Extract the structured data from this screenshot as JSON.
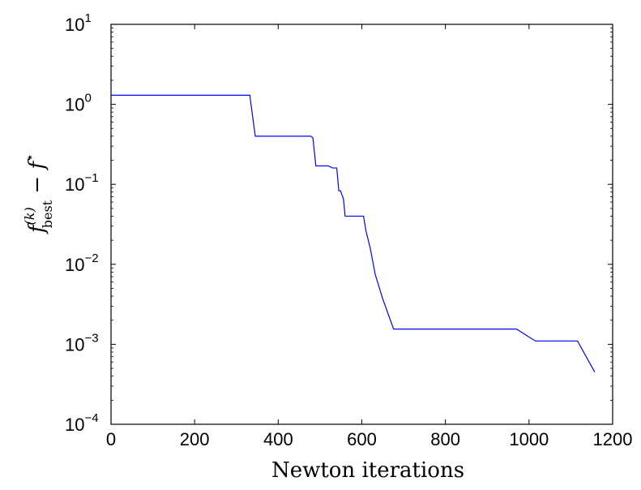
{
  "chart_data": {
    "type": "line",
    "title": "",
    "xlabel": "Newton iterations",
    "ylabel": {
      "f": "f",
      "sup": "(k)",
      "sub": "best",
      "minus": " − ",
      "f2": "f",
      "star": "⋆"
    },
    "xlim": [
      0,
      1200
    ],
    "ylim": [
      0.0001,
      10
    ],
    "yscale": "log",
    "grid": false,
    "x_ticks": [
      0,
      200,
      400,
      600,
      800,
      1000,
      1200
    ],
    "x_tick_labels": [
      "0",
      "200",
      "400",
      "600",
      "800",
      "1000",
      "1200"
    ],
    "y_ticks": [
      0.0001,
      0.001,
      0.01,
      0.1,
      1,
      10
    ],
    "y_tick_labels": [
      {
        "base": "10",
        "exp": "−4"
      },
      {
        "base": "10",
        "exp": "−3"
      },
      {
        "base": "10",
        "exp": "−2"
      },
      {
        "base": "10",
        "exp": "−1"
      },
      {
        "base": "10",
        "exp": "0"
      },
      {
        "base": "10",
        "exp": "1"
      }
    ],
    "series": [
      {
        "color": "#0000ff",
        "x": [
          0,
          332,
          345,
          478,
          483,
          490,
          520,
          530,
          540,
          545,
          549,
          556,
          560,
          570,
          600,
          604,
          610,
          620,
          632,
          650,
          676,
          970,
          1015,
          1116,
          1157
        ],
        "y": [
          1.3,
          1.3,
          0.4,
          0.4,
          0.38,
          0.17,
          0.17,
          0.16,
          0.16,
          0.083,
          0.083,
          0.066,
          0.04,
          0.04,
          0.04,
          0.04,
          0.026,
          0.016,
          0.0075,
          0.0037,
          0.00155,
          0.00155,
          0.0011,
          0.0011,
          0.00045
        ]
      }
    ]
  }
}
